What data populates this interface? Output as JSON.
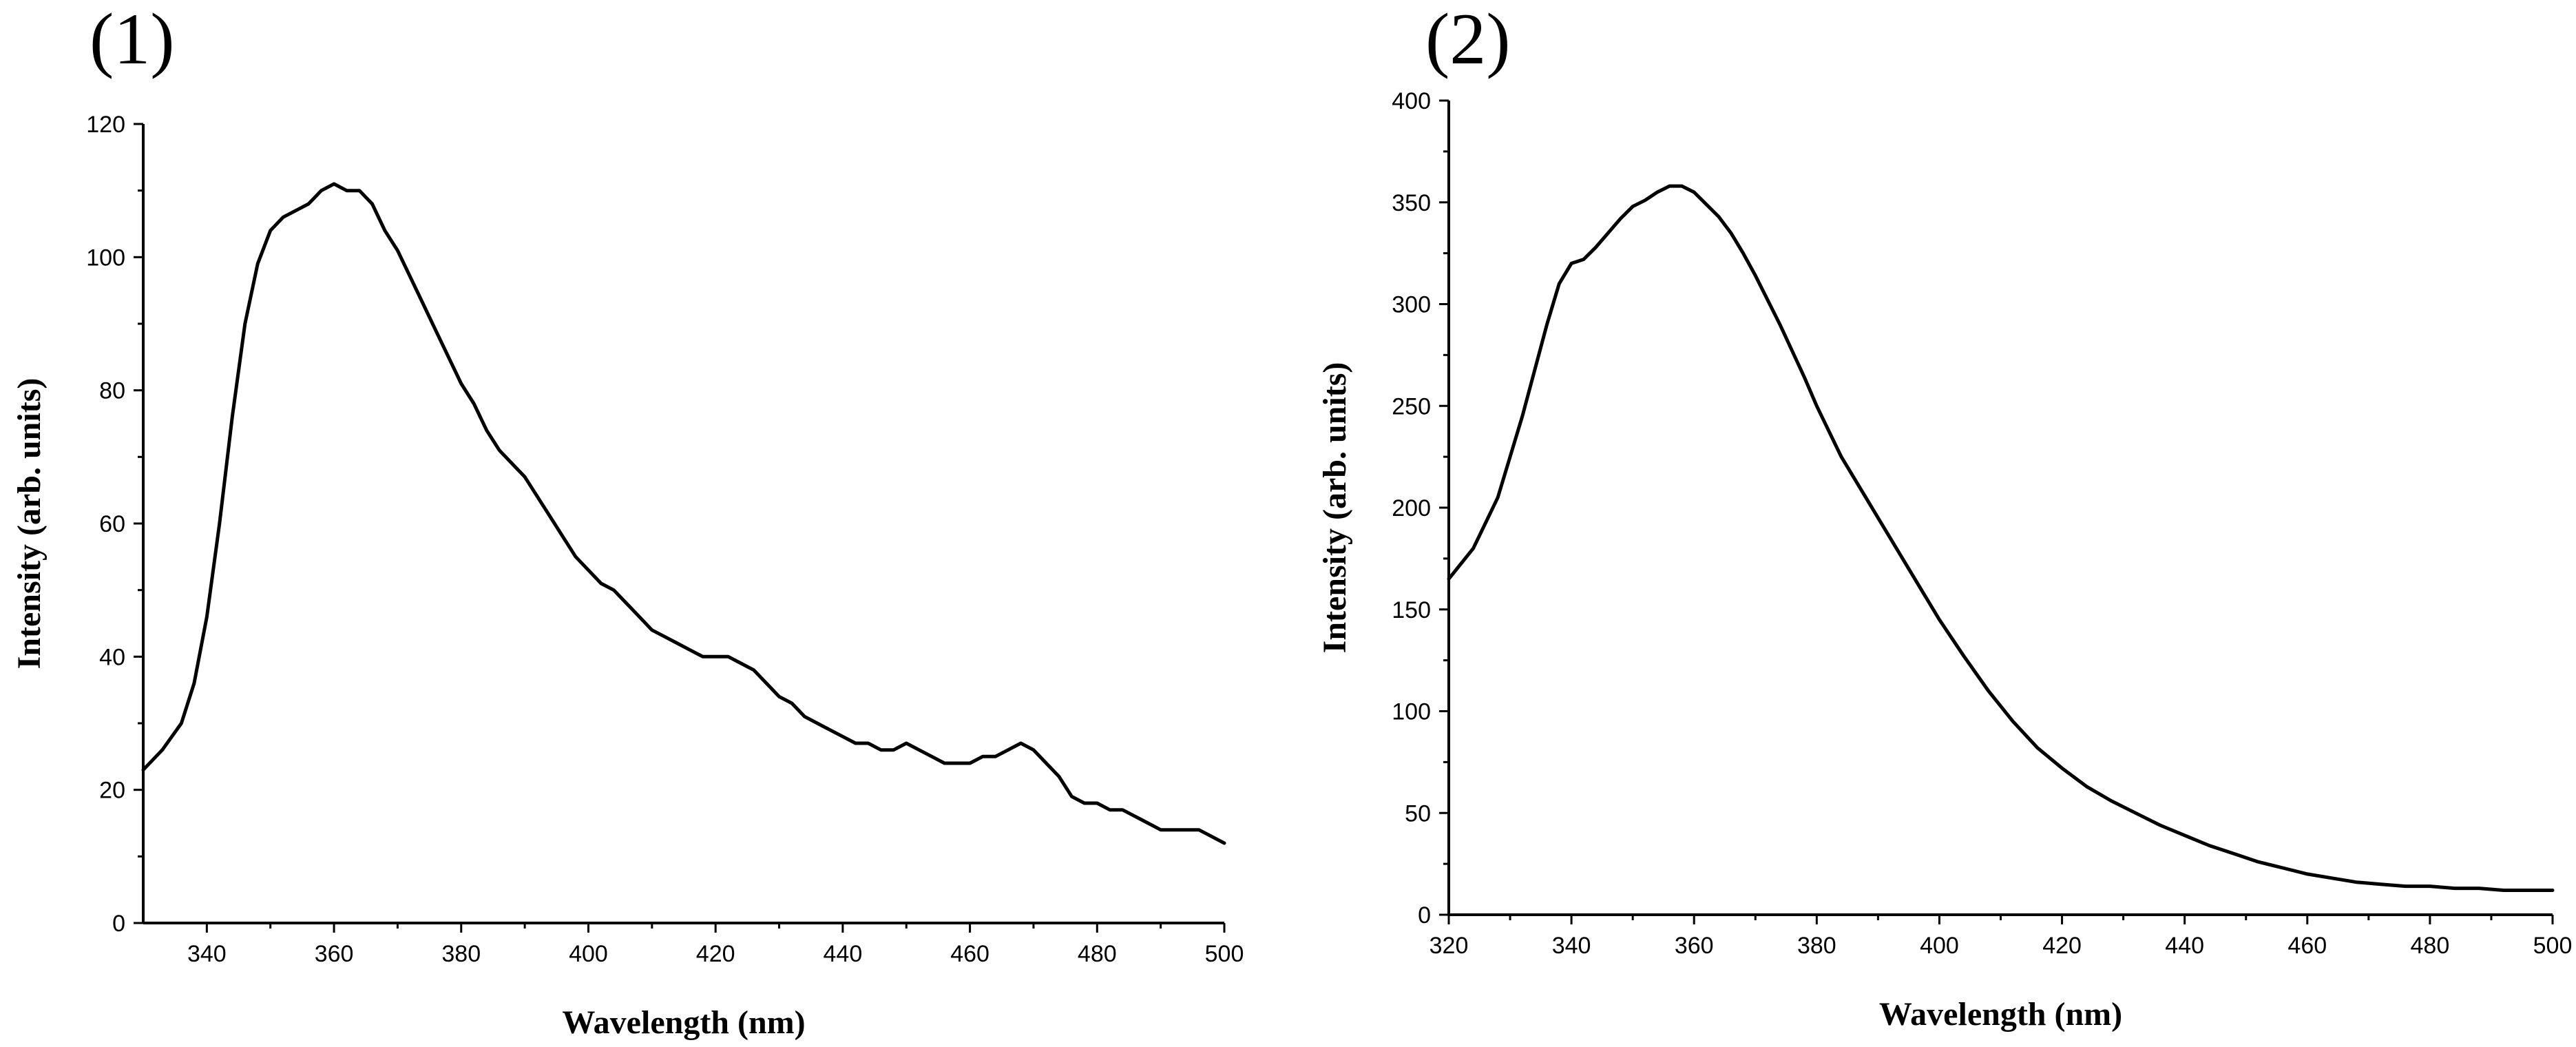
{
  "chart_data": [
    {
      "type": "line",
      "panel_label": "(1)",
      "xlabel": "Wavelength (nm)",
      "ylabel": "Intensity (arb. units)",
      "xlim": [
        330,
        500
      ],
      "ylim": [
        0,
        120
      ],
      "x_ticks": [
        340,
        360,
        380,
        400,
        420,
        440,
        460,
        480,
        500
      ],
      "y_ticks": [
        0,
        20,
        40,
        60,
        80,
        100,
        120
      ],
      "grid": false,
      "series": [
        {
          "color": "#000000",
          "x": [
            330,
            333,
            336,
            338,
            340,
            342,
            344,
            346,
            348,
            350,
            352,
            354,
            356,
            358,
            360,
            362,
            364,
            366,
            368,
            370,
            372,
            374,
            376,
            378,
            380,
            382,
            384,
            386,
            388,
            390,
            392,
            394,
            396,
            398,
            400,
            402,
            404,
            406,
            408,
            410,
            412,
            414,
            416,
            418,
            420,
            422,
            424,
            426,
            428,
            430,
            432,
            434,
            436,
            438,
            440,
            442,
            444,
            446,
            448,
            450,
            452,
            454,
            456,
            458,
            460,
            462,
            464,
            466,
            468,
            470,
            472,
            474,
            476,
            478,
            480,
            482,
            484,
            486,
            488,
            490,
            492,
            494,
            496,
            498,
            500
          ],
          "y": [
            23,
            26,
            30,
            36,
            46,
            60,
            76,
            90,
            99,
            104,
            106,
            107,
            108,
            110,
            111,
            110,
            110,
            108,
            104,
            101,
            97,
            93,
            89,
            85,
            81,
            78,
            74,
            71,
            69,
            67,
            64,
            61,
            58,
            55,
            53,
            51,
            50,
            48,
            46,
            44,
            43,
            42,
            41,
            40,
            40,
            40,
            39,
            38,
            36,
            34,
            33,
            31,
            30,
            29,
            28,
            27,
            27,
            26,
            26,
            27,
            26,
            25,
            24,
            24,
            24,
            25,
            25,
            26,
            27,
            26,
            24,
            22,
            19,
            18,
            18,
            17,
            17,
            16,
            15,
            14,
            14,
            14,
            14,
            13,
            12
          ]
        }
      ]
    },
    {
      "type": "line",
      "panel_label": "(2)",
      "xlabel": "Wavelength (nm)",
      "ylabel": "Intensity (arb. units)",
      "xlim": [
        320,
        500
      ],
      "ylim": [
        0,
        400
      ],
      "x_ticks": [
        320,
        340,
        360,
        380,
        400,
        420,
        440,
        460,
        480,
        500
      ],
      "y_ticks": [
        0,
        50,
        100,
        150,
        200,
        250,
        300,
        350,
        400
      ],
      "grid": false,
      "series": [
        {
          "color": "#000000",
          "x": [
            320,
            324,
            328,
            332,
            336,
            338,
            340,
            342,
            344,
            346,
            348,
            350,
            352,
            354,
            356,
            358,
            360,
            362,
            364,
            366,
            368,
            370,
            372,
            374,
            376,
            378,
            380,
            384,
            388,
            392,
            396,
            400,
            404,
            408,
            412,
            416,
            420,
            424,
            428,
            432,
            436,
            440,
            444,
            448,
            452,
            456,
            460,
            464,
            468,
            472,
            476,
            480,
            484,
            488,
            492,
            496,
            500
          ],
          "y": [
            165,
            180,
            205,
            245,
            290,
            310,
            320,
            322,
            328,
            335,
            342,
            348,
            351,
            355,
            358,
            358,
            355,
            349,
            343,
            335,
            325,
            314,
            302,
            290,
            277,
            264,
            250,
            225,
            205,
            185,
            165,
            145,
            127,
            110,
            95,
            82,
            72,
            63,
            56,
            50,
            44,
            39,
            34,
            30,
            26,
            23,
            20,
            18,
            16,
            15,
            14,
            14,
            13,
            13,
            12,
            12,
            12
          ]
        }
      ]
    }
  ]
}
